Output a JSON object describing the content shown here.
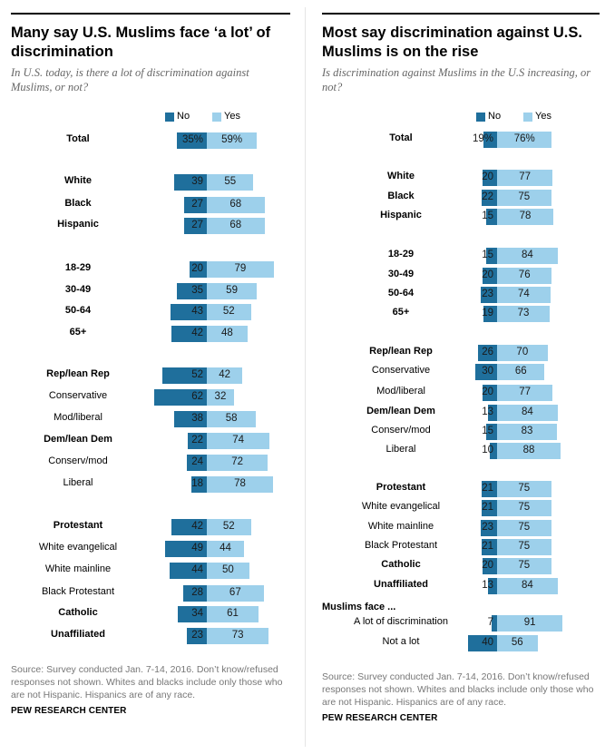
{
  "colors": {
    "no": "#1f6f9c",
    "yes": "#9dd0eb"
  },
  "chart_data": [
    {
      "type": "bar",
      "title": "Many say U.S. Muslims face ‘a lot’ of discrimination",
      "subtitle": "In U.S. today, is there a lot of discrimination against Muslims, or not?",
      "legend": [
        "No",
        "Yes"
      ],
      "categories": [
        "Total",
        "White",
        "Black",
        "Hispanic",
        "18-29",
        "30-49",
        "50-64",
        "65+",
        "Rep/lean Rep",
        "Conservative",
        "Mod/liberal",
        "Dem/lean Dem",
        "Conserv/mod",
        "Liberal",
        "Protestant",
        "White evangelical",
        "White mainline",
        "Black Protestant",
        "Catholic",
        "Unaffiliated"
      ],
      "series": [
        {
          "name": "No",
          "values": [
            35,
            39,
            27,
            27,
            20,
            35,
            43,
            42,
            52,
            62,
            38,
            22,
            24,
            18,
            42,
            49,
            44,
            28,
            34,
            23
          ],
          "labels": [
            "35%",
            "39",
            "27",
            "27",
            "20",
            "35",
            "43",
            "42",
            "52",
            "62",
            "38",
            "22",
            "24",
            "18",
            "42",
            "49",
            "44",
            "28",
            "34",
            "23"
          ]
        },
        {
          "name": "Yes",
          "values": [
            59,
            55,
            68,
            68,
            79,
            59,
            52,
            48,
            42,
            32,
            58,
            74,
            72,
            78,
            52,
            44,
            50,
            67,
            61,
            73
          ],
          "labels": [
            "59%",
            "55",
            "68",
            "68",
            "79",
            "59",
            "52",
            "48",
            "42",
            "32",
            "58",
            "74",
            "72",
            "78",
            "52",
            "44",
            "50",
            "67",
            "61",
            "73"
          ]
        }
      ],
      "source": "Source: Survey conducted Jan. 7-14, 2016. Don’t know/refused responses not shown. Whites and blacks include only those who are not Hispanic. Hispanics are of any race.",
      "brand": "PEW RESEARCH CENTER"
    },
    {
      "type": "bar",
      "title": "Most say discrimination against U.S. Muslims is on the rise",
      "subtitle": "Is discrimination against Muslims in the U.S increasing, or not?",
      "legend": [
        "No",
        "Yes"
      ],
      "section_label": "Muslims face ...",
      "categories": [
        "Total",
        "White",
        "Black",
        "Hispanic",
        "18-29",
        "30-49",
        "50-64",
        "65+",
        "Rep/lean Rep",
        "Conservative",
        "Mod/liberal",
        "Dem/lean Dem",
        "Conserv/mod",
        "Liberal",
        "Protestant",
        "White evangelical",
        "White mainline",
        "Black Protestant",
        "Catholic",
        "Unaffiliated",
        "A lot of discrimination",
        "Not a lot"
      ],
      "series": [
        {
          "name": "No",
          "values": [
            19,
            20,
            22,
            15,
            15,
            20,
            23,
            19,
            26,
            30,
            20,
            13,
            15,
            10,
            21,
            21,
            23,
            21,
            20,
            13,
            7,
            40
          ],
          "labels": [
            "19%",
            "20",
            "22",
            "15",
            "15",
            "20",
            "23",
            "19",
            "26",
            "30",
            "20",
            "13",
            "15",
            "10",
            "21",
            "21",
            "23",
            "21",
            "20",
            "13",
            "7",
            "40"
          ]
        },
        {
          "name": "Yes",
          "values": [
            76,
            77,
            75,
            78,
            84,
            76,
            74,
            73,
            70,
            66,
            77,
            84,
            83,
            88,
            75,
            75,
            75,
            75,
            75,
            84,
            91,
            56
          ],
          "labels": [
            "76%",
            "77",
            "75",
            "78",
            "84",
            "76",
            "74",
            "73",
            "70",
            "66",
            "77",
            "84",
            "83",
            "88",
            "75",
            "75",
            "75",
            "75",
            "75",
            "84",
            "91",
            "56"
          ]
        }
      ],
      "source": "Source: Survey conducted Jan. 7-14, 2016. Don’t know/refused responses not shown. Whites and blacks include only those who are not Hispanic. Hispanics are of any race.",
      "brand": "PEW RESEARCH CENTER"
    }
  ]
}
